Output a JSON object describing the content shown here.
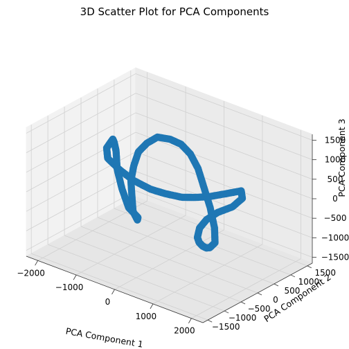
{
  "chart_data": {
    "type": "scatter",
    "projection": "3d",
    "title": "3D Scatter Plot for PCA Components",
    "xlabel": "PCA Component 1",
    "ylabel": "PCA Component 2",
    "zlabel": "PCA Component 3",
    "xlim": [
      -2300,
      2300
    ],
    "ylim": [
      -1650,
      1650
    ],
    "zlim": [
      -1650,
      1650
    ],
    "xticks": [
      -2000,
      -1000,
      0,
      1000,
      2000
    ],
    "yticks": [
      -1500,
      -1000,
      -500,
      0,
      500,
      1000,
      1500
    ],
    "zticks": [
      -1500,
      -1000,
      -500,
      0,
      500,
      1000,
      1500
    ],
    "xtick_labels": [
      "−2000",
      "−1000",
      "0",
      "1000",
      "2000"
    ],
    "ytick_labels": [
      "−1500",
      "−1000",
      "−500",
      "0",
      "500",
      "1000",
      "1500"
    ],
    "ztick_labels": [
      "−1500",
      "−1000",
      "−500",
      "0",
      "500",
      "1000",
      "1500"
    ],
    "grid": true,
    "marker_color": "#1f77b4",
    "series": [
      {
        "shape": "closed 3D loop (dense point trail)",
        "x": [
          -1300,
          -1200,
          -1000,
          -600,
          -200,
          200,
          500,
          800,
          1000,
          1200,
          1500,
          1700,
          1600,
          1300,
          900,
          600,
          400,
          300,
          300,
          350,
          400,
          450,
          500,
          400,
          200,
          0,
          -200,
          -400,
          -600,
          -800,
          -1000,
          -1100,
          -1150,
          -1100,
          -1000,
          -800,
          -600,
          -400,
          -300,
          -500,
          -800,
          -1100,
          -1300,
          -1350,
          -1300
        ],
        "y": [
          -200,
          -500,
          -700,
          -800,
          -850,
          -800,
          -700,
          -550,
          -400,
          -200,
          0,
          200,
          350,
          400,
          420,
          430,
          450,
          500,
          550,
          600,
          650,
          700,
          800,
          900,
          1000,
          1050,
          1100,
          1100,
          1050,
          950,
          800,
          600,
          400,
          200,
          0,
          -200,
          -400,
          -500,
          -600,
          -650,
          -500,
          -300,
          -100,
          -100,
          -200
        ],
        "z": [
          1050,
          1000,
          900,
          800,
          700,
          600,
          550,
          500,
          500,
          500,
          600,
          650,
          350,
          0,
          -300,
          -600,
          -900,
          -1200,
          -1350,
          -1450,
          -1500,
          -1500,
          -1400,
          -1100,
          -700,
          -300,
          100,
          400,
          600,
          700,
          750,
          650,
          500,
          250,
          0,
          -250,
          -450,
          -550,
          -400,
          -200,
          100,
          400,
          700,
          900,
          1050
        ]
      }
    ]
  }
}
